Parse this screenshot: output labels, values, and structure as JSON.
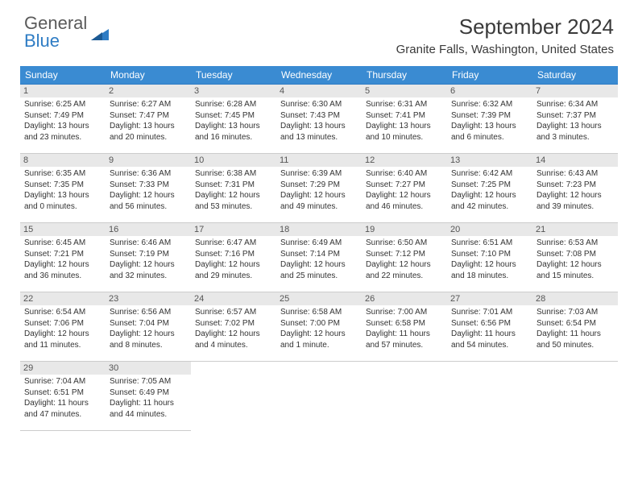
{
  "logo": {
    "text_gray": "General",
    "text_blue": "Blue"
  },
  "title": "September 2024",
  "location": "Granite Falls, Washington, United States",
  "colors": {
    "header_bg": "#3a8bd2",
    "header_fg": "#ffffff",
    "row_top_border": "#2e7cc4",
    "row_bottom_border": "#cccccc",
    "daynum_bg": "#e8e8e8",
    "text": "#333333",
    "logo_gray": "#5a5a5a",
    "logo_blue": "#2e7cc4"
  },
  "weekdays": [
    "Sunday",
    "Monday",
    "Tuesday",
    "Wednesday",
    "Thursday",
    "Friday",
    "Saturday"
  ],
  "days": [
    {
      "n": "1",
      "sunrise": "Sunrise: 6:25 AM",
      "sunset": "Sunset: 7:49 PM",
      "d1": "Daylight: 13 hours",
      "d2": "and 23 minutes."
    },
    {
      "n": "2",
      "sunrise": "Sunrise: 6:27 AM",
      "sunset": "Sunset: 7:47 PM",
      "d1": "Daylight: 13 hours",
      "d2": "and 20 minutes."
    },
    {
      "n": "3",
      "sunrise": "Sunrise: 6:28 AM",
      "sunset": "Sunset: 7:45 PM",
      "d1": "Daylight: 13 hours",
      "d2": "and 16 minutes."
    },
    {
      "n": "4",
      "sunrise": "Sunrise: 6:30 AM",
      "sunset": "Sunset: 7:43 PM",
      "d1": "Daylight: 13 hours",
      "d2": "and 13 minutes."
    },
    {
      "n": "5",
      "sunrise": "Sunrise: 6:31 AM",
      "sunset": "Sunset: 7:41 PM",
      "d1": "Daylight: 13 hours",
      "d2": "and 10 minutes."
    },
    {
      "n": "6",
      "sunrise": "Sunrise: 6:32 AM",
      "sunset": "Sunset: 7:39 PM",
      "d1": "Daylight: 13 hours",
      "d2": "and 6 minutes."
    },
    {
      "n": "7",
      "sunrise": "Sunrise: 6:34 AM",
      "sunset": "Sunset: 7:37 PM",
      "d1": "Daylight: 13 hours",
      "d2": "and 3 minutes."
    },
    {
      "n": "8",
      "sunrise": "Sunrise: 6:35 AM",
      "sunset": "Sunset: 7:35 PM",
      "d1": "Daylight: 13 hours",
      "d2": "and 0 minutes."
    },
    {
      "n": "9",
      "sunrise": "Sunrise: 6:36 AM",
      "sunset": "Sunset: 7:33 PM",
      "d1": "Daylight: 12 hours",
      "d2": "and 56 minutes."
    },
    {
      "n": "10",
      "sunrise": "Sunrise: 6:38 AM",
      "sunset": "Sunset: 7:31 PM",
      "d1": "Daylight: 12 hours",
      "d2": "and 53 minutes."
    },
    {
      "n": "11",
      "sunrise": "Sunrise: 6:39 AM",
      "sunset": "Sunset: 7:29 PM",
      "d1": "Daylight: 12 hours",
      "d2": "and 49 minutes."
    },
    {
      "n": "12",
      "sunrise": "Sunrise: 6:40 AM",
      "sunset": "Sunset: 7:27 PM",
      "d1": "Daylight: 12 hours",
      "d2": "and 46 minutes."
    },
    {
      "n": "13",
      "sunrise": "Sunrise: 6:42 AM",
      "sunset": "Sunset: 7:25 PM",
      "d1": "Daylight: 12 hours",
      "d2": "and 42 minutes."
    },
    {
      "n": "14",
      "sunrise": "Sunrise: 6:43 AM",
      "sunset": "Sunset: 7:23 PM",
      "d1": "Daylight: 12 hours",
      "d2": "and 39 minutes."
    },
    {
      "n": "15",
      "sunrise": "Sunrise: 6:45 AM",
      "sunset": "Sunset: 7:21 PM",
      "d1": "Daylight: 12 hours",
      "d2": "and 36 minutes."
    },
    {
      "n": "16",
      "sunrise": "Sunrise: 6:46 AM",
      "sunset": "Sunset: 7:19 PM",
      "d1": "Daylight: 12 hours",
      "d2": "and 32 minutes."
    },
    {
      "n": "17",
      "sunrise": "Sunrise: 6:47 AM",
      "sunset": "Sunset: 7:16 PM",
      "d1": "Daylight: 12 hours",
      "d2": "and 29 minutes."
    },
    {
      "n": "18",
      "sunrise": "Sunrise: 6:49 AM",
      "sunset": "Sunset: 7:14 PM",
      "d1": "Daylight: 12 hours",
      "d2": "and 25 minutes."
    },
    {
      "n": "19",
      "sunrise": "Sunrise: 6:50 AM",
      "sunset": "Sunset: 7:12 PM",
      "d1": "Daylight: 12 hours",
      "d2": "and 22 minutes."
    },
    {
      "n": "20",
      "sunrise": "Sunrise: 6:51 AM",
      "sunset": "Sunset: 7:10 PM",
      "d1": "Daylight: 12 hours",
      "d2": "and 18 minutes."
    },
    {
      "n": "21",
      "sunrise": "Sunrise: 6:53 AM",
      "sunset": "Sunset: 7:08 PM",
      "d1": "Daylight: 12 hours",
      "d2": "and 15 minutes."
    },
    {
      "n": "22",
      "sunrise": "Sunrise: 6:54 AM",
      "sunset": "Sunset: 7:06 PM",
      "d1": "Daylight: 12 hours",
      "d2": "and 11 minutes."
    },
    {
      "n": "23",
      "sunrise": "Sunrise: 6:56 AM",
      "sunset": "Sunset: 7:04 PM",
      "d1": "Daylight: 12 hours",
      "d2": "and 8 minutes."
    },
    {
      "n": "24",
      "sunrise": "Sunrise: 6:57 AM",
      "sunset": "Sunset: 7:02 PM",
      "d1": "Daylight: 12 hours",
      "d2": "and 4 minutes."
    },
    {
      "n": "25",
      "sunrise": "Sunrise: 6:58 AM",
      "sunset": "Sunset: 7:00 PM",
      "d1": "Daylight: 12 hours",
      "d2": "and 1 minute."
    },
    {
      "n": "26",
      "sunrise": "Sunrise: 7:00 AM",
      "sunset": "Sunset: 6:58 PM",
      "d1": "Daylight: 11 hours",
      "d2": "and 57 minutes."
    },
    {
      "n": "27",
      "sunrise": "Sunrise: 7:01 AM",
      "sunset": "Sunset: 6:56 PM",
      "d1": "Daylight: 11 hours",
      "d2": "and 54 minutes."
    },
    {
      "n": "28",
      "sunrise": "Sunrise: 7:03 AM",
      "sunset": "Sunset: 6:54 PM",
      "d1": "Daylight: 11 hours",
      "d2": "and 50 minutes."
    },
    {
      "n": "29",
      "sunrise": "Sunrise: 7:04 AM",
      "sunset": "Sunset: 6:51 PM",
      "d1": "Daylight: 11 hours",
      "d2": "and 47 minutes."
    },
    {
      "n": "30",
      "sunrise": "Sunrise: 7:05 AM",
      "sunset": "Sunset: 6:49 PM",
      "d1": "Daylight: 11 hours",
      "d2": "and 44 minutes."
    }
  ]
}
